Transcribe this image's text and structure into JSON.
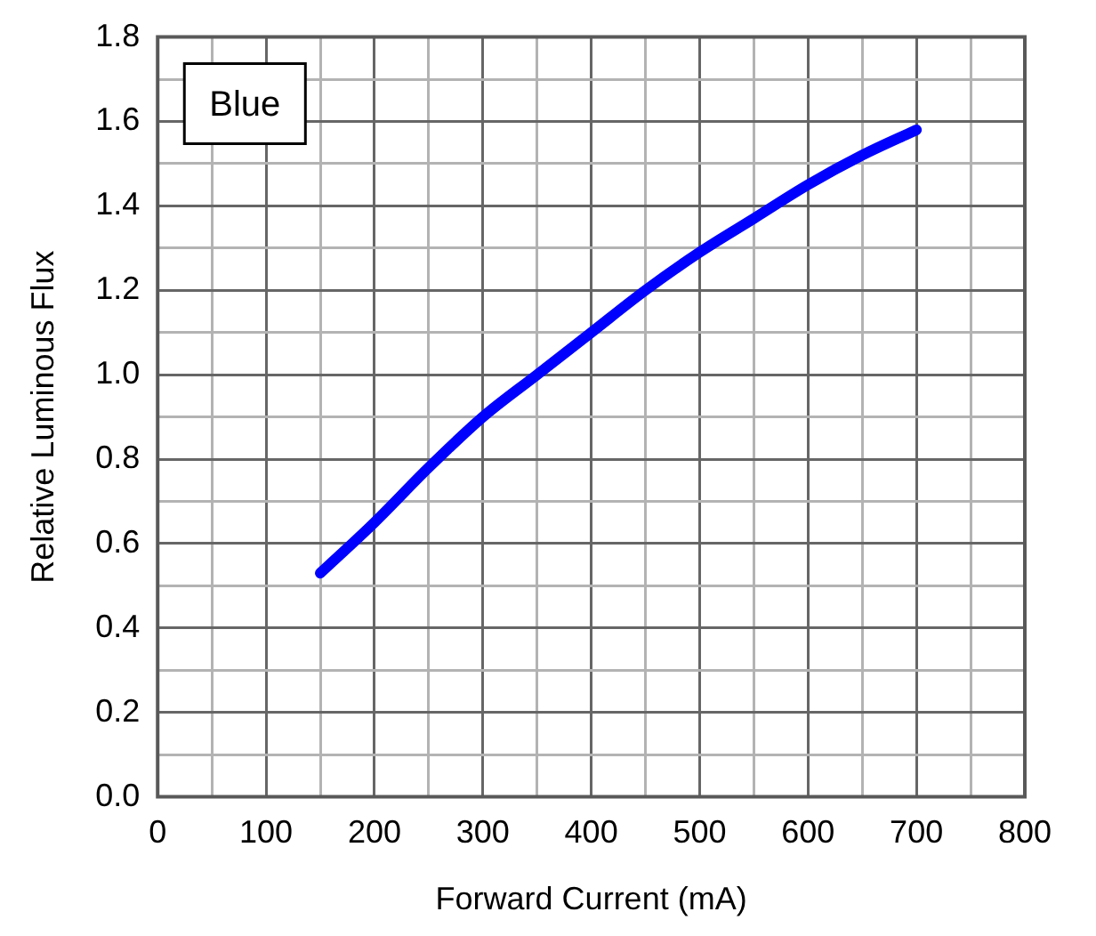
{
  "chart_data": {
    "type": "line",
    "xlabel": "Forward Current (mA)",
    "ylabel": "Relative Luminous Flux",
    "annotations": [
      "Blue"
    ],
    "x": [
      150,
      200,
      250,
      300,
      350,
      400,
      450,
      500,
      550,
      600,
      650,
      700
    ],
    "series": [
      {
        "color": "#0000ff",
        "values": [
          0.53,
          0.65,
          0.78,
          0.9,
          1.0,
          1.1,
          1.2,
          1.29,
          1.37,
          1.45,
          1.52,
          1.58
        ]
      }
    ],
    "xlim": [
      0,
      800
    ],
    "xticks": [
      0,
      {
        "value": 50,
        "label": null
      },
      100,
      {
        "value": 150,
        "label": null
      },
      200,
      {
        "value": 250,
        "label": null
      },
      300,
      {
        "value": 350,
        "label": null
      },
      400,
      {
        "value": 450,
        "label": null
      },
      500,
      {
        "value": 550,
        "label": null
      },
      600,
      {
        "value": 650,
        "label": null
      },
      700,
      {
        "value": 750,
        "label": null
      },
      800
    ],
    "ylim": [
      0,
      1.8
    ],
    "yticks": [
      {
        "value": 0,
        "label": "0.0"
      },
      {
        "value": 0.1,
        "label": null
      },
      {
        "value": 0.2,
        "label": "0.2"
      },
      {
        "value": 0.3,
        "label": null
      },
      {
        "value": 0.4,
        "label": "0.4"
      },
      {
        "value": 0.5,
        "label": null
      },
      {
        "value": 0.6,
        "label": "0.6"
      },
      {
        "value": 0.7,
        "label": null
      },
      {
        "value": 0.8,
        "label": "0.8"
      },
      {
        "value": 0.9,
        "label": null
      },
      {
        "value": 1,
        "label": "1.0"
      },
      {
        "value": 1.1,
        "label": null
      },
      {
        "value": 1.2,
        "label": "1.2"
      },
      {
        "value": 1.3,
        "label": null
      },
      {
        "value": 1.4,
        "label": "1.4"
      },
      {
        "value": 1.5,
        "label": null
      },
      {
        "value": 1.6,
        "label": "1.6"
      },
      {
        "value": 1.7,
        "label": null
      },
      {
        "value": 1.8,
        "label": "1.8"
      }
    ],
    "grid": true,
    "legend": false,
    "marker": "none",
    "line_style": "solid"
  }
}
